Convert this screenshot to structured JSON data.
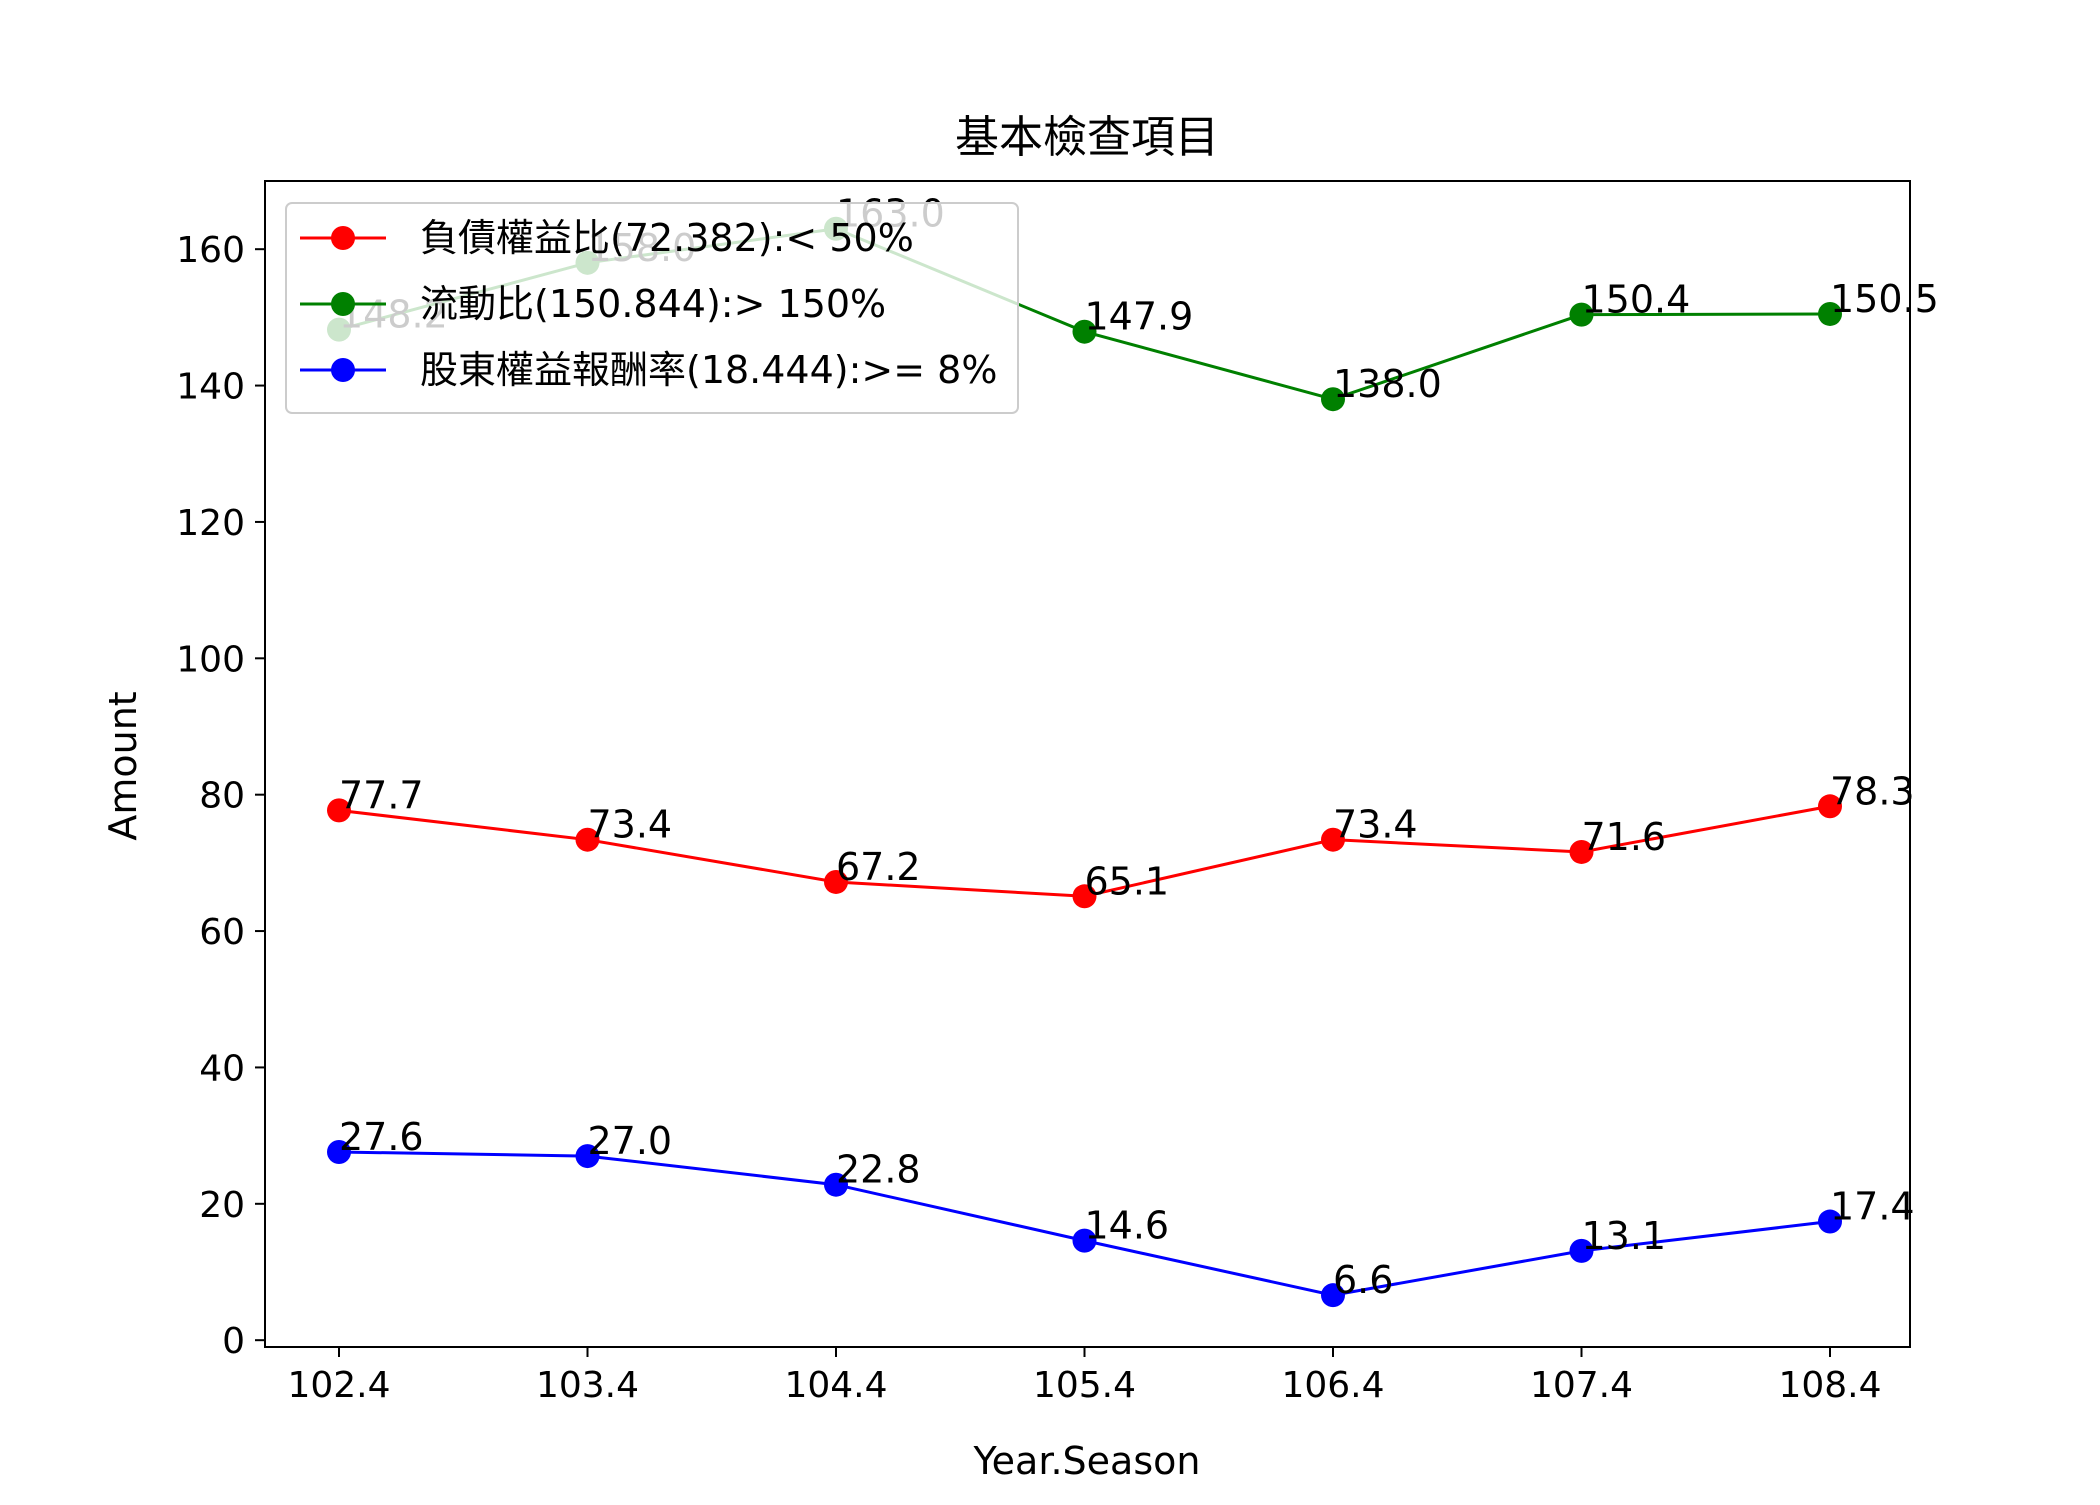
{
  "chart_data": {
    "type": "line",
    "title": "基本檢查項目",
    "xlabel": "Year.Season",
    "ylabel": "Amount",
    "categories": [
      "102.4",
      "103.4",
      "104.4",
      "105.4",
      "106.4",
      "107.4",
      "108.4"
    ],
    "ylim": [
      -1,
      170
    ],
    "yticks": [
      0,
      20,
      40,
      60,
      80,
      100,
      120,
      140,
      160
    ],
    "legend_position": "top-left",
    "grid": false,
    "series": [
      {
        "name": "負債權益比(72.382):< 50%",
        "color": "#ff0000",
        "values": [
          77.7,
          73.4,
          67.2,
          65.1,
          73.4,
          71.6,
          78.3
        ],
        "labels": [
          "77.7",
          "73.4",
          "67.2",
          "65.1",
          "73.4",
          "71.6",
          "78.3"
        ]
      },
      {
        "name": "流動比(150.844):> 150%",
        "color": "#008000",
        "values": [
          148.2,
          158.0,
          163.0,
          147.9,
          138.0,
          150.4,
          150.5
        ],
        "labels": [
          "148.2",
          "158.0",
          "163.0",
          "147.9",
          "138.0",
          "150.4",
          "150.5"
        ]
      },
      {
        "name": "股東權益報酬率(18.444):>= 8%",
        "color": "#0000ff",
        "values": [
          27.6,
          27.0,
          22.8,
          14.6,
          6.6,
          13.1,
          17.4
        ],
        "labels": [
          "27.6",
          "27.0",
          "22.8",
          "14.6",
          "6.6",
          "13.1",
          "17.4"
        ]
      }
    ]
  }
}
